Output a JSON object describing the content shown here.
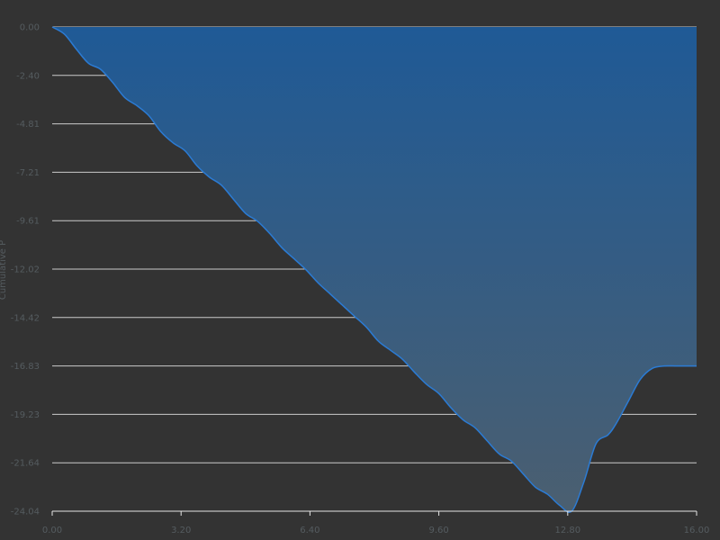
{
  "chart_data": {
    "type": "area",
    "title": "",
    "xlabel": "",
    "ylabel": "Cumulative P",
    "xlim": [
      0,
      16
    ],
    "ylim": [
      -24.04,
      0
    ],
    "x_ticks": [
      "0.00",
      "3.20",
      "6.40",
      "9.60",
      "12.80",
      "16.00"
    ],
    "y_ticks": [
      "0.00",
      "-2.40",
      "-4.81",
      "-7.21",
      "-9.61",
      "-12.02",
      "-14.42",
      "-16.83",
      "-19.23",
      "-21.64",
      "-24.04"
    ],
    "grid": true,
    "series": [
      {
        "name": "",
        "x": [
          0,
          0.3,
          0.6,
          0.9,
          1.2,
          1.5,
          1.8,
          2.1,
          2.4,
          2.7,
          3.0,
          3.3,
          3.6,
          3.9,
          4.2,
          4.5,
          4.8,
          5.1,
          5.4,
          5.7,
          6.0,
          6.3,
          6.6,
          6.9,
          7.2,
          7.5,
          7.8,
          8.1,
          8.4,
          8.7,
          9.0,
          9.3,
          9.6,
          9.9,
          10.2,
          10.5,
          10.8,
          11.1,
          11.4,
          11.7,
          12.0,
          12.3,
          12.6,
          12.9,
          13.2,
          13.5,
          13.8,
          14.0,
          14.3,
          14.6,
          14.9,
          15.2,
          15.5,
          15.8,
          16.0
        ],
        "values": [
          0,
          -0.35,
          -1.1,
          -1.8,
          -2.1,
          -2.75,
          -3.5,
          -3.9,
          -4.4,
          -5.2,
          -5.75,
          -6.15,
          -6.9,
          -7.45,
          -7.85,
          -8.55,
          -9.25,
          -9.65,
          -10.25,
          -10.95,
          -11.5,
          -12.05,
          -12.7,
          -13.25,
          -13.8,
          -14.35,
          -14.9,
          -15.6,
          -16.05,
          -16.5,
          -17.15,
          -17.75,
          -18.2,
          -18.9,
          -19.5,
          -19.9,
          -20.55,
          -21.2,
          -21.55,
          -22.2,
          -22.85,
          -23.2,
          -23.75,
          -24.04,
          -22.6,
          -20.7,
          -20.25,
          -19.7,
          -18.6,
          -17.5,
          -16.95,
          -16.83,
          -16.83,
          -16.83,
          -16.83
        ]
      }
    ],
    "colors": {
      "background": "#333333",
      "line": "#2b7bd4",
      "fill_top": "#1f5a96",
      "fill_bottom": "#4b5f70",
      "grid": "#e6e6e6",
      "tick_text": "#555c60"
    }
  }
}
